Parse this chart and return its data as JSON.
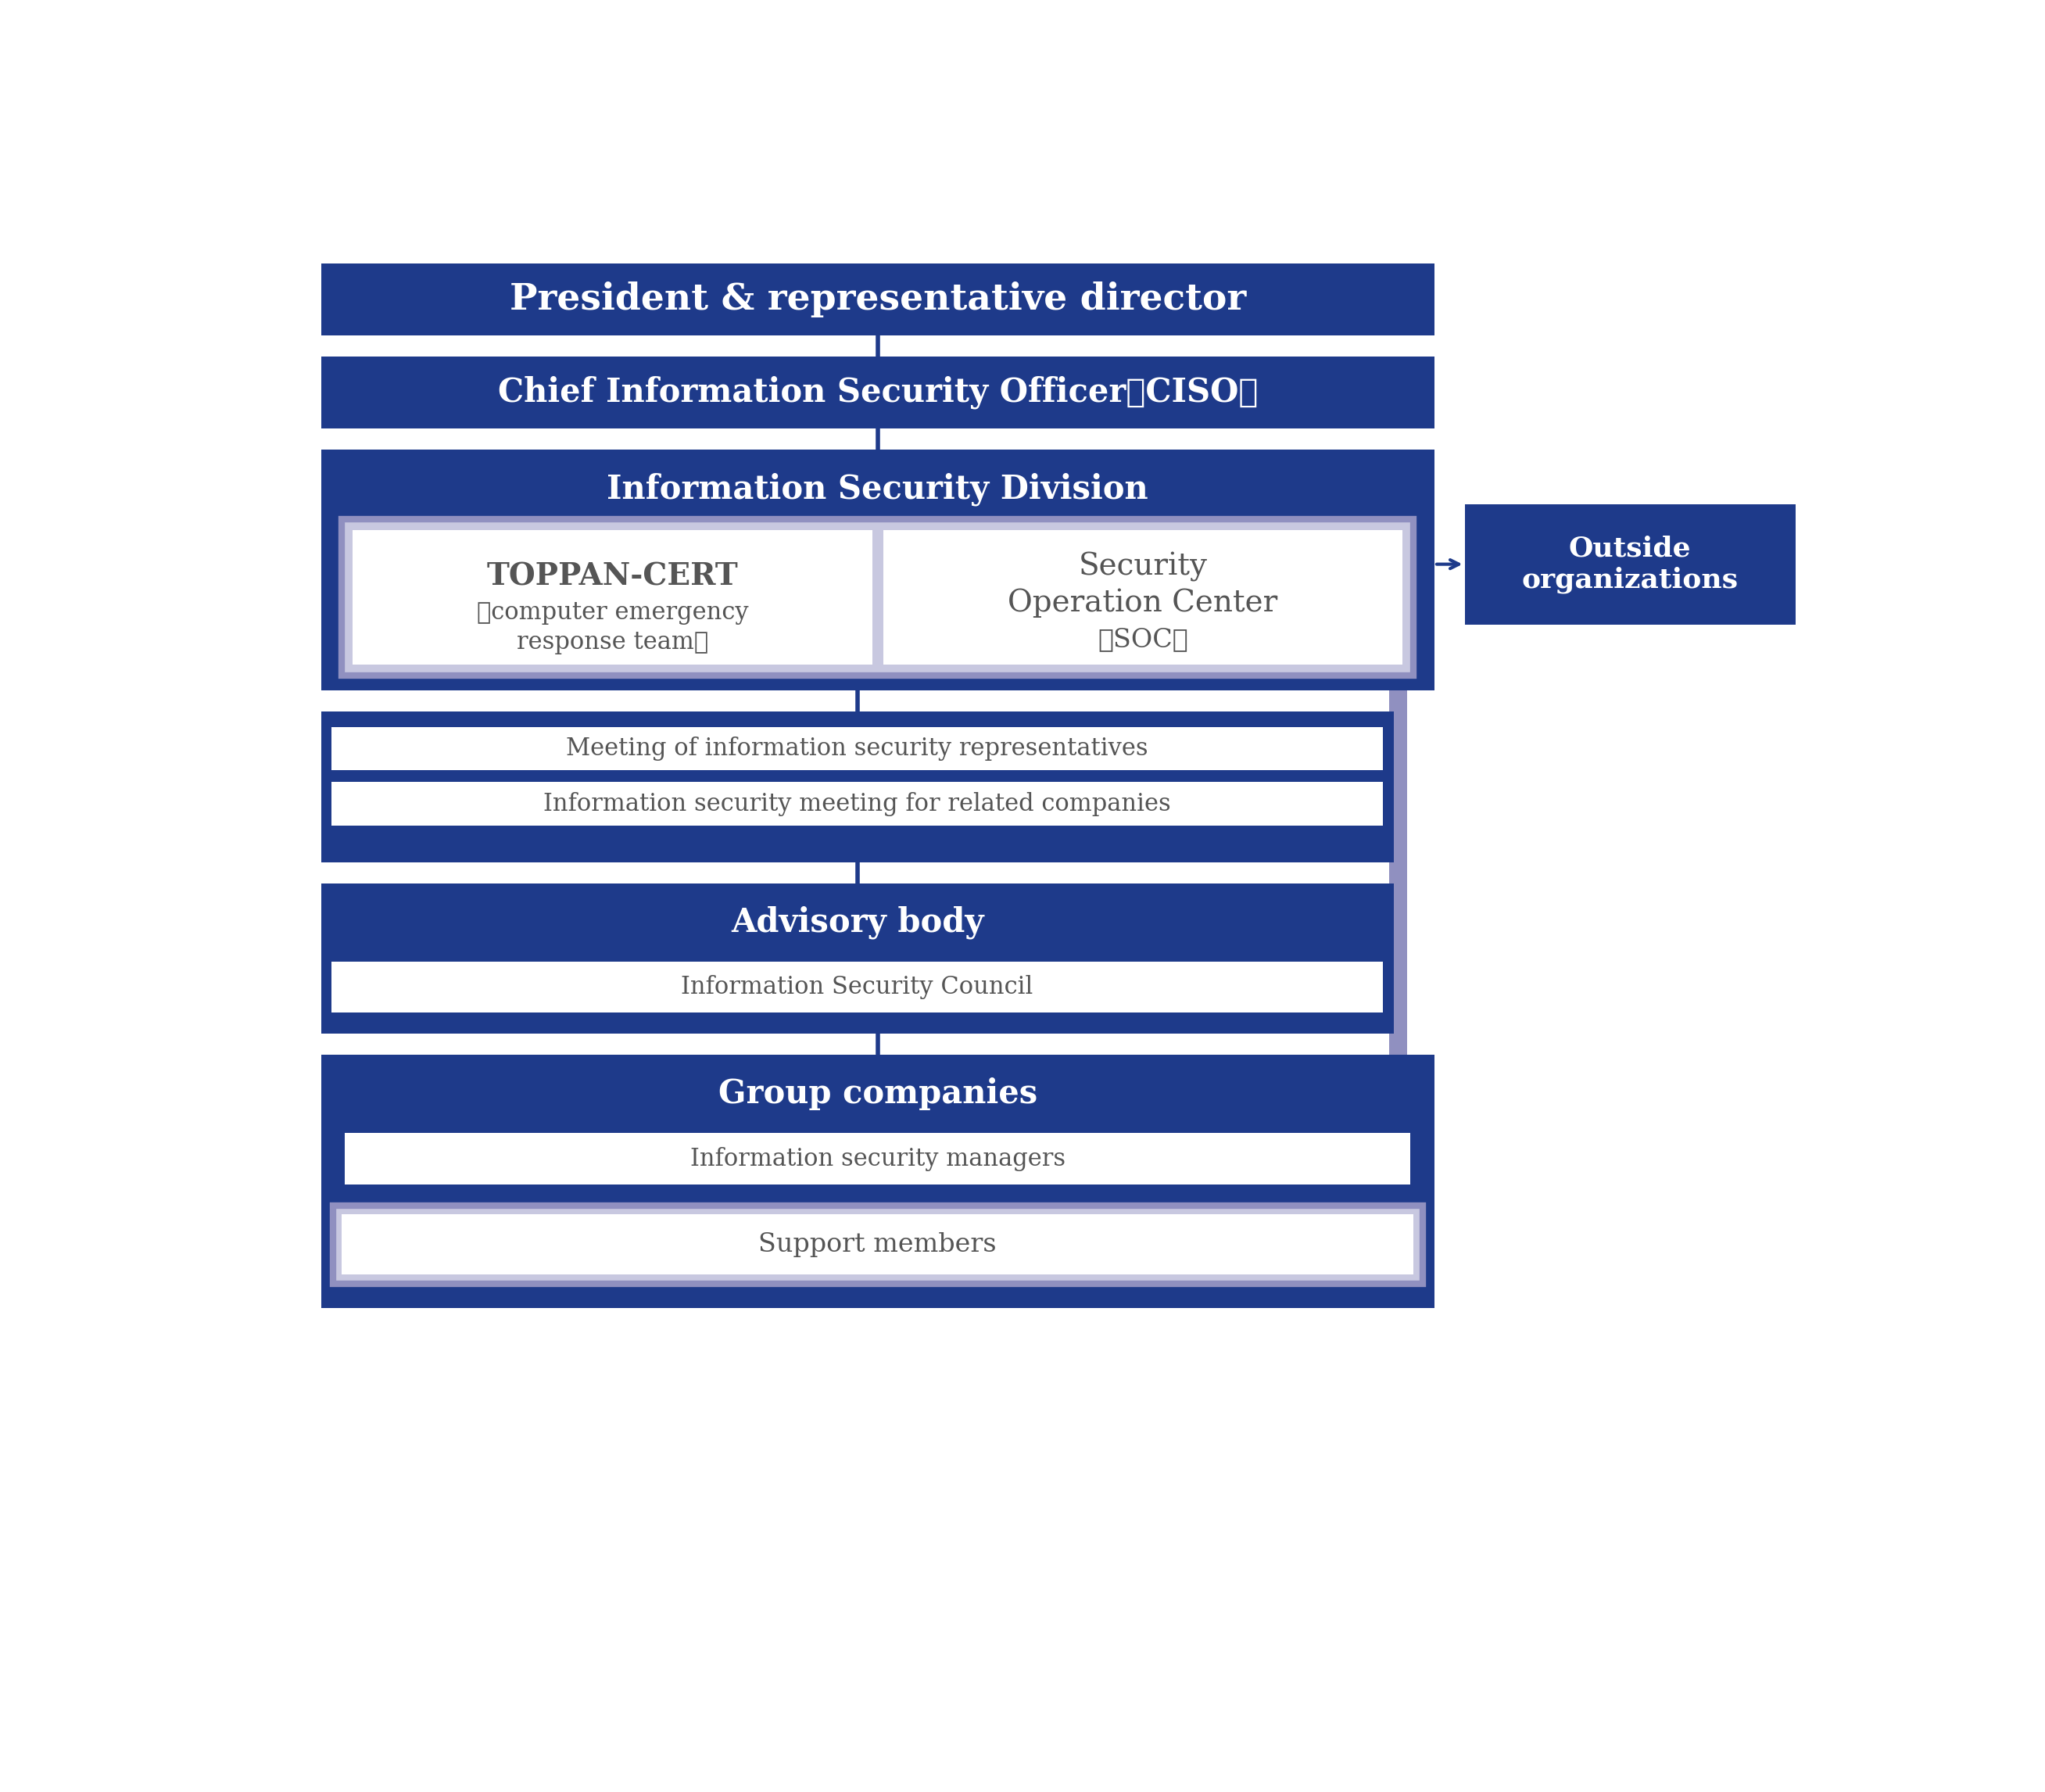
{
  "dark_blue": "#1e3a8a",
  "light_purple": "#9090c0",
  "light_purple_fill": "#c8c8e0",
  "white": "#ffffff",
  "dark_gray": "#555555",
  "bg_color": "#ffffff",
  "title": "President & representative director",
  "ciso": "Chief Information Security Officer（CISO）",
  "isd": "Information Security Division",
  "toppan_line1": "TOPPAN-CERT",
  "toppan_line2": "（computer emergency",
  "toppan_line3": "response team）",
  "soc_line1": "Security",
  "soc_line2": "Operation Center",
  "soc_line3": "（SOC）",
  "outside": "Outside\norganizations",
  "meeting1": "Meeting of information security representatives",
  "meeting2": "Information security meeting for related companies",
  "advisory": "Advisory body",
  "council": "Information Security Council",
  "group": "Group companies",
  "managers": "Information security managers",
  "support": "Support members",
  "title_fs": 34,
  "header_fs": 30,
  "body_fs": 22,
  "sub_fs": 24,
  "outside_fs": 26
}
